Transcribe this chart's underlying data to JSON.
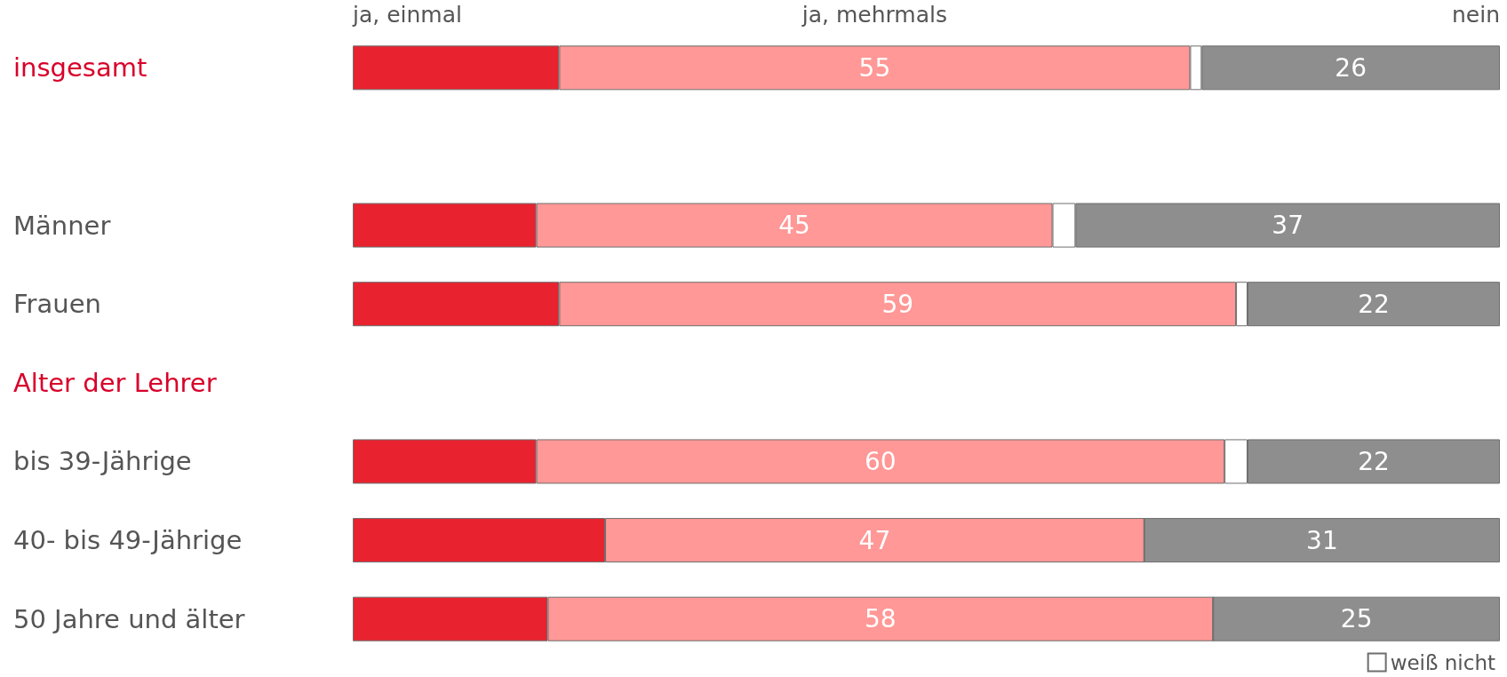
{
  "chart_data": {
    "type": "bar",
    "orientation": "horizontal",
    "stacked": true,
    "categories": [
      "insgesamt",
      null,
      "Männer",
      "Frauen",
      "Alter der Lehrer",
      "bis 39-Jährige",
      "40- bis 49-Jährige",
      "50 Jahre und älter"
    ],
    "series": [
      {
        "name": "ja, einmal",
        "color": "#e8232f",
        "values": [
          18,
          null,
          16,
          18,
          null,
          16,
          22,
          17
        ]
      },
      {
        "name": "ja, mehrmals",
        "color": "#ff9896",
        "values": [
          55,
          null,
          45,
          59,
          null,
          60,
          47,
          58
        ],
        "value_labels": [
          "55",
          null,
          "45",
          "59",
          null,
          "60",
          "47",
          "58"
        ]
      },
      {
        "name": "weiß nicht",
        "color": "#ffffff",
        "values": [
          1,
          null,
          2,
          1,
          null,
          2,
          0,
          0
        ]
      },
      {
        "name": "nein",
        "color": "#8e8e8e",
        "values": [
          26,
          null,
          37,
          22,
          null,
          22,
          31,
          25
        ],
        "value_labels": [
          "26",
          null,
          "37",
          "22",
          null,
          "22",
          "31",
          "25"
        ]
      }
    ],
    "xlim": [
      0,
      100
    ],
    "legend": "bottom right"
  }
}
